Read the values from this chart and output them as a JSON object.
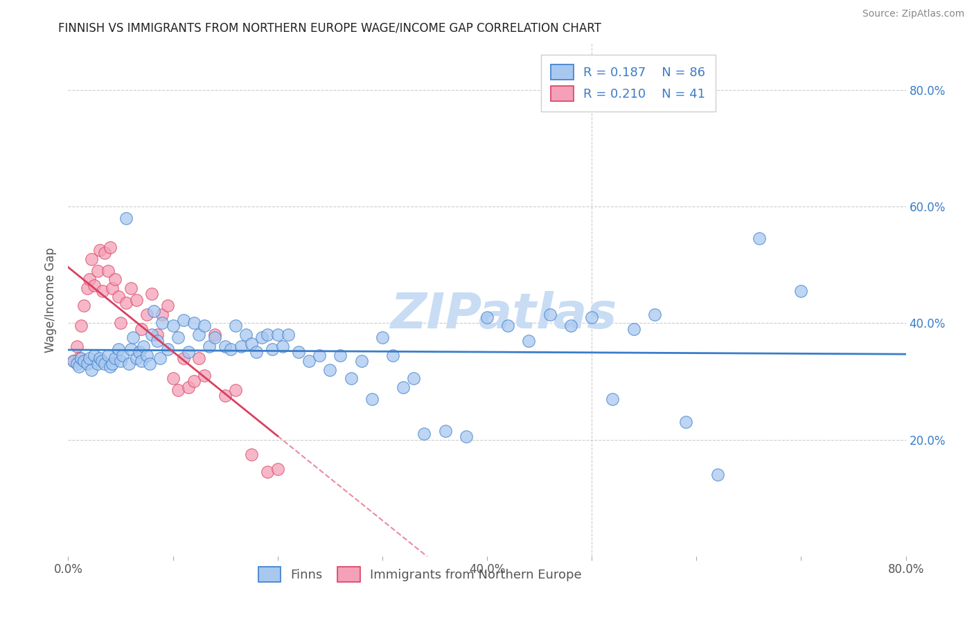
{
  "title": "FINNISH VS IMMIGRANTS FROM NORTHERN EUROPE WAGE/INCOME GAP CORRELATION CHART",
  "source": "Source: ZipAtlas.com",
  "ylabel": "Wage/Income Gap",
  "xlim": [
    0.0,
    0.8
  ],
  "ylim": [
    0.0,
    0.88
  ],
  "color_finns": "#A8C8F0",
  "color_immigrants": "#F4A0B8",
  "color_trendline_finns": "#3A7DC9",
  "color_trendline_immigrants": "#D94060",
  "watermark_text": "ZIPatlas",
  "watermark_color": "#C8DCF4",
  "finns_x": [
    0.005,
    0.008,
    0.01,
    0.012,
    0.015,
    0.018,
    0.02,
    0.022,
    0.025,
    0.028,
    0.03,
    0.032,
    0.035,
    0.038,
    0.04,
    0.042,
    0.045,
    0.048,
    0.05,
    0.052,
    0.055,
    0.058,
    0.06,
    0.062,
    0.065,
    0.068,
    0.07,
    0.072,
    0.075,
    0.078,
    0.08,
    0.082,
    0.085,
    0.088,
    0.09,
    0.095,
    0.1,
    0.105,
    0.11,
    0.115,
    0.12,
    0.125,
    0.13,
    0.135,
    0.14,
    0.15,
    0.155,
    0.16,
    0.165,
    0.17,
    0.175,
    0.18,
    0.185,
    0.19,
    0.195,
    0.2,
    0.205,
    0.21,
    0.22,
    0.23,
    0.24,
    0.25,
    0.26,
    0.27,
    0.28,
    0.29,
    0.3,
    0.31,
    0.32,
    0.33,
    0.34,
    0.36,
    0.38,
    0.4,
    0.42,
    0.44,
    0.46,
    0.48,
    0.5,
    0.52,
    0.54,
    0.56,
    0.59,
    0.62,
    0.66,
    0.7
  ],
  "finns_y": [
    0.335,
    0.33,
    0.325,
    0.34,
    0.335,
    0.33,
    0.34,
    0.32,
    0.345,
    0.33,
    0.34,
    0.335,
    0.33,
    0.345,
    0.325,
    0.33,
    0.34,
    0.355,
    0.335,
    0.345,
    0.58,
    0.33,
    0.355,
    0.375,
    0.34,
    0.35,
    0.335,
    0.36,
    0.345,
    0.33,
    0.38,
    0.42,
    0.37,
    0.34,
    0.4,
    0.355,
    0.395,
    0.375,
    0.405,
    0.35,
    0.4,
    0.38,
    0.395,
    0.36,
    0.375,
    0.36,
    0.355,
    0.395,
    0.36,
    0.38,
    0.365,
    0.35,
    0.375,
    0.38,
    0.355,
    0.38,
    0.36,
    0.38,
    0.35,
    0.335,
    0.345,
    0.32,
    0.345,
    0.305,
    0.335,
    0.27,
    0.375,
    0.345,
    0.29,
    0.305,
    0.21,
    0.215,
    0.205,
    0.41,
    0.395,
    0.37,
    0.415,
    0.395,
    0.41,
    0.27,
    0.39,
    0.415,
    0.23,
    0.14,
    0.545,
    0.455
  ],
  "immigrants_x": [
    0.005,
    0.008,
    0.01,
    0.012,
    0.015,
    0.018,
    0.02,
    0.022,
    0.025,
    0.028,
    0.03,
    0.033,
    0.035,
    0.038,
    0.04,
    0.042,
    0.045,
    0.048,
    0.05,
    0.055,
    0.06,
    0.065,
    0.07,
    0.075,
    0.08,
    0.085,
    0.09,
    0.095,
    0.1,
    0.105,
    0.11,
    0.115,
    0.12,
    0.125,
    0.13,
    0.14,
    0.15,
    0.16,
    0.175,
    0.19,
    0.2
  ],
  "immigrants_y": [
    0.335,
    0.36,
    0.34,
    0.395,
    0.43,
    0.46,
    0.475,
    0.51,
    0.465,
    0.49,
    0.525,
    0.455,
    0.52,
    0.49,
    0.53,
    0.46,
    0.475,
    0.445,
    0.4,
    0.435,
    0.46,
    0.44,
    0.39,
    0.415,
    0.45,
    0.38,
    0.415,
    0.43,
    0.305,
    0.285,
    0.34,
    0.29,
    0.3,
    0.34,
    0.31,
    0.38,
    0.275,
    0.285,
    0.175,
    0.145,
    0.15
  ]
}
